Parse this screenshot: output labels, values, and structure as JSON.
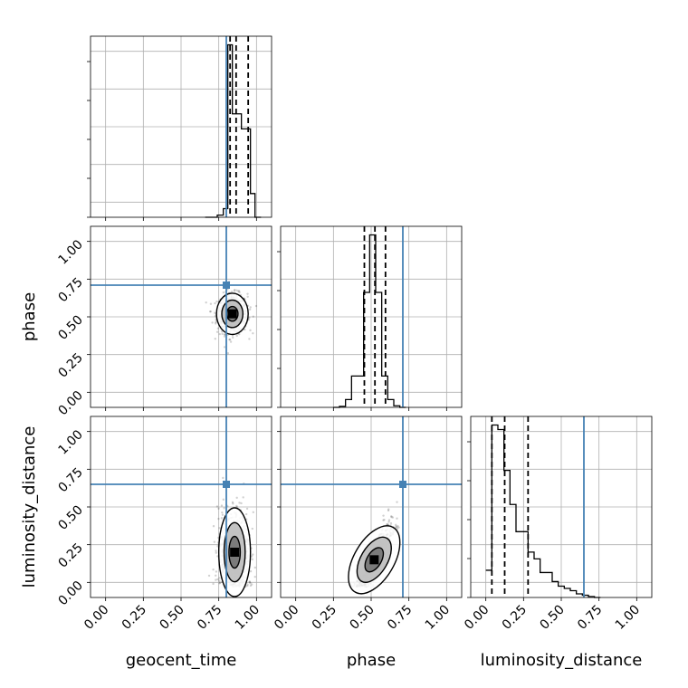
{
  "chart_data": {
    "type": "corner",
    "parameters": [
      "geocent_time",
      "phase",
      "luminosity_distance"
    ],
    "axis_range": [
      -0.1,
      1.1
    ],
    "tick_values": [
      0.0,
      0.25,
      0.5,
      0.75,
      1.0
    ],
    "tick_labels": [
      "0.00",
      "0.25",
      "0.50",
      "0.75",
      "1.00"
    ],
    "grid": true,
    "truths": {
      "geocent_time": 0.8,
      "phase": 0.71,
      "luminosity_distance": 0.65
    },
    "truth_color": "#4682b4",
    "quantiles": {
      "geocent_time": [
        0.825,
        0.865,
        0.945
      ],
      "phase": [
        0.455,
        0.525,
        0.595
      ],
      "luminosity_distance": [
        0.04,
        0.125,
        0.28
      ]
    },
    "histograms": {
      "geocent_time": {
        "edges": [
          0.66,
          0.7,
          0.74,
          0.78,
          0.81,
          0.84,
          0.87,
          0.9,
          0.93,
          0.96,
          0.99,
          1.03
        ],
        "counts": [
          0,
          0,
          0.05,
          0.2,
          4.0,
          2.4,
          2.4,
          2.05,
          2.05,
          0.55,
          0
        ]
      },
      "phase": {
        "edges": [
          0.25,
          0.29,
          0.33,
          0.37,
          0.41,
          0.45,
          0.49,
          0.53,
          0.57,
          0.61,
          0.65,
          0.69,
          0.73
        ],
        "counts": [
          0,
          0.02,
          0.15,
          0.6,
          0.6,
          2.2,
          3.3,
          2.2,
          0.6,
          0.15,
          0.03,
          0
        ]
      },
      "luminosity_distance": {
        "edges": [
          0.0,
          0.04,
          0.08,
          0.12,
          0.16,
          0.2,
          0.24,
          0.28,
          0.32,
          0.36,
          0.4,
          0.44,
          0.48,
          0.52,
          0.56,
          0.6,
          0.64,
          0.68,
          0.72,
          0.76
        ],
        "counts": [
          0.6,
          3.8,
          3.7,
          2.8,
          2.05,
          1.45,
          1.45,
          1.0,
          0.85,
          0.55,
          0.55,
          0.35,
          0.25,
          0.2,
          0.15,
          0.08,
          0.05,
          0.02,
          0
        ]
      }
    },
    "scatter_2d": {
      "phase_vs_geocent_time": {
        "x_param": "geocent_time",
        "y_param": "phase",
        "mean": [
          0.84,
          0.52
        ],
        "std": [
          0.05,
          0.065
        ],
        "correlation": 0.0
      },
      "luminosity_distance_vs_geocent_time": {
        "x_param": "geocent_time",
        "y_param": "luminosity_distance",
        "mean": [
          0.855,
          0.2
        ],
        "std": [
          0.05,
          0.14
        ],
        "correlation": 0.0
      },
      "luminosity_distance_vs_phase": {
        "x_param": "phase",
        "y_param": "luminosity_distance",
        "mean": [
          0.52,
          0.15
        ],
        "std": [
          0.06,
          0.12
        ],
        "correlation": 0.85
      }
    }
  }
}
